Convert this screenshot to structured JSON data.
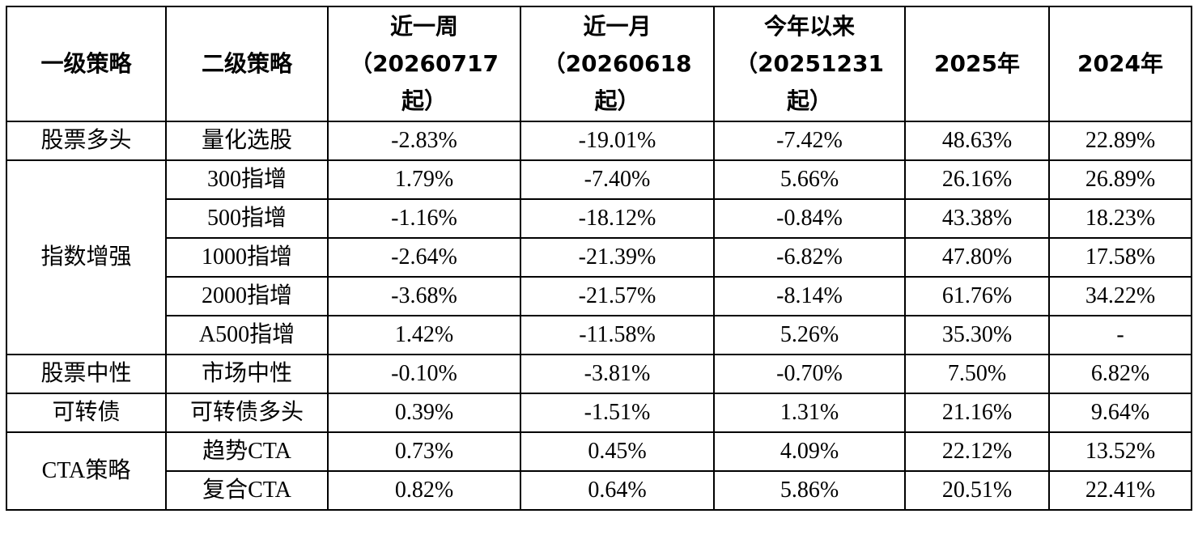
{
  "table": {
    "header": [
      "一级策略",
      "二级策略",
      "近一周（20260717起）",
      "近一月（20260618起）",
      "今年以来（20251231起）",
      "2025年",
      "2024年"
    ],
    "groups": [
      {
        "name": "股票多头",
        "rows": [
          [
            "量化选股",
            "-2.83%",
            "-19.01%",
            "-7.42%",
            "48.63%",
            "22.89%"
          ]
        ]
      },
      {
        "name": "指数增强",
        "rows": [
          [
            "300指增",
            "1.79%",
            "-7.40%",
            "5.66%",
            "26.16%",
            "26.89%"
          ],
          [
            "500指增",
            "-1.16%",
            "-18.12%",
            "-0.84%",
            "43.38%",
            "18.23%"
          ],
          [
            "1000指增",
            "-2.64%",
            "-21.39%",
            "-6.82%",
            "47.80%",
            "17.58%"
          ],
          [
            "2000指增",
            "-3.68%",
            "-21.57%",
            "-8.14%",
            "61.76%",
            "34.22%"
          ],
          [
            "A500指增",
            "1.42%",
            "-11.58%",
            "5.26%",
            "35.30%",
            "-"
          ]
        ]
      },
      {
        "name": "股票中性",
        "rows": [
          [
            "市场中性",
            "-0.10%",
            "-3.81%",
            "-0.70%",
            "7.50%",
            "6.82%"
          ]
        ]
      },
      {
        "name": "可转债",
        "rows": [
          [
            "可转债多头",
            "0.39%",
            "-1.51%",
            "1.31%",
            "21.16%",
            "9.64%"
          ]
        ]
      },
      {
        "name": "CTA策略",
        "rows": [
          [
            "趋势CTA",
            "0.73%",
            "0.45%",
            "4.09%",
            "22.12%",
            "13.52%"
          ],
          [
            "复合CTA",
            "0.82%",
            "0.64%",
            "5.86%",
            "20.51%",
            "22.41%"
          ]
        ]
      }
    ]
  }
}
